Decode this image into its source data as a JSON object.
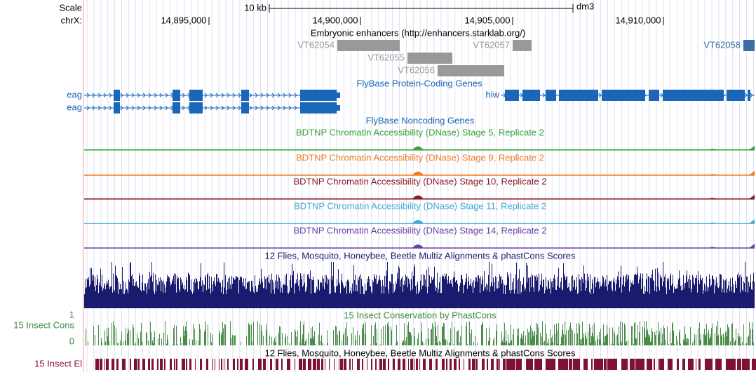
{
  "ruler": {
    "scale_label": "Scale",
    "scale_bar": "10 kb",
    "assembly": "dm3",
    "chrom": "chrX:",
    "positions": [
      "14,895,000",
      "14,900,000",
      "14,905,000",
      "14,910,000"
    ]
  },
  "enhancers": {
    "title": "Embryonic enhancers (http://enhancers.starklab.org/)",
    "items": [
      "VT62054",
      "VT62057",
      "VT62058",
      "VT62055",
      "VT62056"
    ]
  },
  "genes": {
    "title": "FlyBase Protein-Coding Genes",
    "items": [
      "eag",
      "eag",
      "hiw"
    ]
  },
  "noncoding": {
    "title": "FlyBase Noncoding Genes"
  },
  "dnase": {
    "tracks": [
      "BDTNP Chromatin Accessibility (DNase) Stage 5, Replicate 2",
      "BDTNP Chromatin Accessibility (DNase) Stage 9, Replicate 2",
      "BDTNP Chromatin Accessibility (DNase) Stage 10, Replicate 2",
      "BDTNP Chromatin Accessibility (DNase) Stage 11, Replicate 2",
      "BDTNP Chromatin Accessibility (DNase) Stage 14, Replicate 2"
    ]
  },
  "multiz": {
    "title": "12 Flies, Mosquito, Honeybee, Beetle Multiz Alignments & phastCons Scores"
  },
  "phastcons": {
    "title": "15 Insect Conservation by PhastCons",
    "side_label": "15 Insect Cons",
    "max_label": "1",
    "min_label": "0"
  },
  "elements": {
    "title": "12 Flies, Mosquito, Honeybee, Beetle Multiz Alignments & phastCons Scores",
    "side_label": "15 Insect El"
  }
}
